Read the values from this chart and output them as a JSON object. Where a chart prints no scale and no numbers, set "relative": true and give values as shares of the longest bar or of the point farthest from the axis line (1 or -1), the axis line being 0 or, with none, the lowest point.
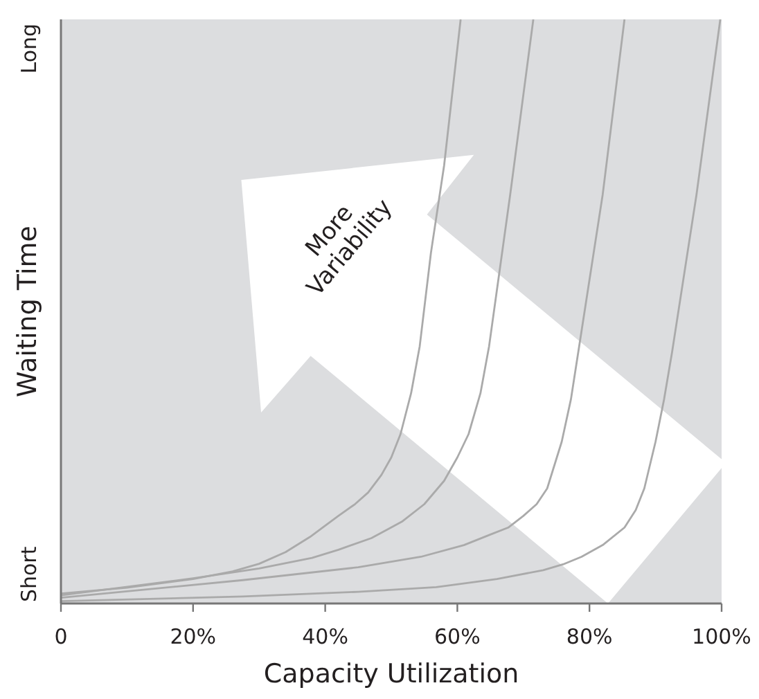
{
  "chart_data": {
    "type": "line",
    "xlabel": "Capacity Utilization",
    "ylabel": "Waiting Time",
    "relative": true,
    "xlim": [
      0,
      100
    ],
    "xticks": [
      0,
      {
        "value": 20,
        "label": "20%"
      },
      {
        "value": 40,
        "label": "40%"
      },
      {
        "value": 60,
        "label": "60%"
      },
      {
        "value": 80,
        "label": "80%"
      },
      {
        "value": 100,
        "label": "100%"
      }
    ],
    "marker": "none",
    "line_style": "solid",
    "grid": false,
    "annotations": [
      "More Variability",
      "Short",
      "Long"
    ],
    "series": [
      {
        "color": "#aaaaaa",
        "x": [
          0,
          10,
          20,
          26,
          30,
          34,
          37.7,
          42,
          44.5,
          46.5,
          48.5,
          50,
          51.4,
          53,
          54.3,
          56,
          58,
          60.5
        ],
        "values": [
          0.017,
          0.027,
          0.042,
          0.055,
          0.068,
          0.088,
          0.114,
          0.15,
          0.17,
          0.19,
          0.22,
          0.25,
          0.29,
          0.36,
          0.44,
          0.6,
          0.75,
          1.0
        ]
      },
      {
        "color": "#aaaaaa",
        "x": [
          0,
          20,
          30,
          38,
          42,
          47,
          51.6,
          55,
          58,
          60,
          61.7,
          63.5,
          64.8,
          68,
          71.5
        ],
        "values": [
          0.014,
          0.043,
          0.06,
          0.078,
          0.092,
          0.112,
          0.14,
          0.17,
          0.21,
          0.25,
          0.29,
          0.36,
          0.44,
          0.7,
          1.0
        ]
      },
      {
        "color": "#aaaaaa",
        "x": [
          0,
          27.5,
          45,
          54.5,
          61,
          65,
          67.7,
          70,
          72,
          73.6,
          75.8,
          77.2,
          78.3,
          82,
          85.3
        ],
        "values": [
          0.01,
          0.04,
          0.062,
          0.08,
          0.1,
          0.118,
          0.13,
          0.15,
          0.17,
          0.197,
          0.277,
          0.35,
          0.43,
          0.7,
          1.0
        ]
      },
      {
        "color": "#aaaaaa",
        "x": [
          0,
          27.5,
          45,
          56.8,
          66,
          73,
          76,
          78.8,
          82,
          85.3,
          87,
          88.3,
          90,
          91.3,
          92.5,
          96.2,
          99.8
        ],
        "values": [
          0.004,
          0.012,
          0.02,
          0.028,
          0.042,
          0.057,
          0.067,
          0.08,
          0.1,
          0.13,
          0.16,
          0.197,
          0.277,
          0.35,
          0.43,
          0.7,
          1.0
        ]
      }
    ]
  }
}
